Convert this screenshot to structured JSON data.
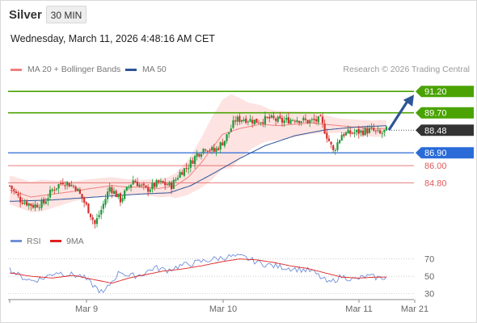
{
  "header": {
    "instrument": "Silver",
    "interval": "30 MIN",
    "timestamp": "Wednesday, March 11, 2026 4:48:16 AM CET"
  },
  "legend": {
    "items": [
      {
        "label": "MA 20 + Bollinger Bands",
        "color": "#f08080"
      },
      {
        "label": "MA 50",
        "color": "#2f5597"
      }
    ],
    "credit": "Research © 2026 Trading Central"
  },
  "colors": {
    "resistance": "#4aa302",
    "support": "#2a6bd8",
    "support_weak": "#e05a5a",
    "last_price": "#333333",
    "arrow": "#2f5597",
    "band_fill": "#fde3e1",
    "ma20": "#f08080",
    "ma50": "#2f5597",
    "candle_up": "#1f9a3a",
    "candle_down": "#d0312d",
    "rsi": "#6f8fd8",
    "rsi_ma": "#e02020"
  },
  "chart_data": [
    {
      "type": "candlestick",
      "panel": "price",
      "x_labels": [
        "Mar 9",
        "Mar 10",
        "Mar 11",
        "Mar 21"
      ],
      "ylim": [
        81.2,
        92.4
      ],
      "levels": [
        {
          "value": 91.2,
          "label": "91.20",
          "kind": "resistance"
        },
        {
          "value": 89.7,
          "label": "89.70",
          "kind": "resistance"
        },
        {
          "value": 88.48,
          "label": "88.48",
          "kind": "last"
        },
        {
          "value": 86.9,
          "label": "86.90",
          "kind": "support"
        },
        {
          "value": 86.0,
          "label": "86.00",
          "kind": "support_weak"
        },
        {
          "value": 84.8,
          "label": "84.80",
          "kind": "support_weak"
        }
      ],
      "projection": {
        "from": 88.5,
        "to": 91.2
      },
      "ma20_keypoints": [
        [
          0,
          84.3
        ],
        [
          10,
          83.8
        ],
        [
          20,
          84.0
        ],
        [
          30,
          84.2
        ],
        [
          38,
          84.4
        ],
        [
          48,
          84.6
        ],
        [
          55,
          84.5
        ],
        [
          64,
          84.5
        ],
        [
          70,
          84.4
        ],
        [
          78,
          84.6
        ],
        [
          84,
          85.2
        ],
        [
          90,
          86.2
        ],
        [
          95,
          87.2
        ],
        [
          100,
          88.2
        ],
        [
          108,
          88.6
        ],
        [
          118,
          88.9
        ],
        [
          126,
          88.8
        ],
        [
          134,
          88.9
        ],
        [
          142,
          89.0
        ],
        [
          148,
          88.9
        ],
        [
          155,
          88.8
        ],
        [
          162,
          88.7
        ],
        [
          170,
          88.6
        ],
        [
          177,
          88.6
        ]
      ],
      "ma50_keypoints": [
        [
          0,
          83.5
        ],
        [
          20,
          83.6
        ],
        [
          40,
          83.8
        ],
        [
          60,
          84.0
        ],
        [
          75,
          84.1
        ],
        [
          85,
          84.6
        ],
        [
          95,
          85.4
        ],
        [
          108,
          86.5
        ],
        [
          120,
          87.4
        ],
        [
          134,
          88.1
        ],
        [
          148,
          88.5
        ],
        [
          162,
          88.7
        ],
        [
          177,
          88.8
        ]
      ],
      "band_width_keypoints": [
        [
          0,
          1.0
        ],
        [
          15,
          1.1
        ],
        [
          30,
          0.7
        ],
        [
          48,
          0.6
        ],
        [
          62,
          0.5
        ],
        [
          75,
          0.7
        ],
        [
          85,
          1.3
        ],
        [
          95,
          2.2
        ],
        [
          104,
          2.6
        ],
        [
          112,
          1.7
        ],
        [
          122,
          1.1
        ],
        [
          140,
          0.8
        ],
        [
          155,
          0.5
        ],
        [
          177,
          0.6
        ]
      ],
      "close_keypoints": [
        [
          0,
          84.6
        ],
        [
          5,
          83.6
        ],
        [
          11,
          83.2
        ],
        [
          16,
          83.4
        ],
        [
          20,
          84.3
        ],
        [
          25,
          84.9
        ],
        [
          31,
          84.5
        ],
        [
          37,
          82.9
        ],
        [
          40,
          81.9
        ],
        [
          43,
          82.9
        ],
        [
          47,
          84.5
        ],
        [
          52,
          83.6
        ],
        [
          58,
          85.0
        ],
        [
          64,
          84.3
        ],
        [
          70,
          84.8
        ],
        [
          76,
          84.6
        ],
        [
          80,
          85.5
        ],
        [
          84,
          86.0
        ],
        [
          88,
          86.8
        ],
        [
          92,
          87.3
        ],
        [
          96,
          87.0
        ],
        [
          101,
          87.8
        ],
        [
          106,
          89.2
        ],
        [
          110,
          89.3
        ],
        [
          116,
          89.1
        ],
        [
          122,
          89.3
        ],
        [
          128,
          89.1
        ],
        [
          134,
          89.3
        ],
        [
          140,
          89.1
        ],
        [
          146,
          89.2
        ],
        [
          152,
          87.0
        ],
        [
          156,
          88.2
        ],
        [
          161,
          88.3
        ],
        [
          166,
          88.4
        ],
        [
          170,
          88.5
        ],
        [
          174,
          88.2
        ],
        [
          177,
          88.48
        ]
      ]
    },
    {
      "type": "line",
      "panel": "rsi",
      "legend": [
        "RSI",
        "9MA"
      ],
      "ticks": [
        70,
        50,
        30
      ],
      "ylim": [
        24,
        80
      ],
      "rsi_keypoints": [
        [
          0,
          58
        ],
        [
          5,
          50
        ],
        [
          10,
          45
        ],
        [
          15,
          47
        ],
        [
          22,
          55
        ],
        [
          28,
          52
        ],
        [
          34,
          50
        ],
        [
          40,
          38
        ],
        [
          44,
          30
        ],
        [
          48,
          44
        ],
        [
          52,
          56
        ],
        [
          56,
          50
        ],
        [
          62,
          52
        ],
        [
          68,
          60
        ],
        [
          74,
          57
        ],
        [
          80,
          62
        ],
        [
          88,
          66
        ],
        [
          96,
          70
        ],
        [
          104,
          73
        ],
        [
          110,
          72
        ],
        [
          118,
          65
        ],
        [
          124,
          62
        ],
        [
          130,
          60
        ],
        [
          136,
          58
        ],
        [
          142,
          56
        ],
        [
          150,
          42
        ],
        [
          156,
          50
        ],
        [
          162,
          46
        ],
        [
          168,
          50
        ],
        [
          174,
          48
        ],
        [
          177,
          49
        ]
      ],
      "ma_keypoints": [
        [
          0,
          54
        ],
        [
          10,
          50
        ],
        [
          20,
          48
        ],
        [
          30,
          51
        ],
        [
          40,
          46
        ],
        [
          48,
          42
        ],
        [
          56,
          48
        ],
        [
          64,
          52
        ],
        [
          72,
          56
        ],
        [
          80,
          58
        ],
        [
          90,
          62
        ],
        [
          100,
          67
        ],
        [
          108,
          70
        ],
        [
          116,
          69
        ],
        [
          124,
          66
        ],
        [
          132,
          62
        ],
        [
          140,
          59
        ],
        [
          148,
          54
        ],
        [
          156,
          49
        ],
        [
          164,
          48
        ],
        [
          172,
          49
        ],
        [
          177,
          49
        ]
      ]
    }
  ]
}
